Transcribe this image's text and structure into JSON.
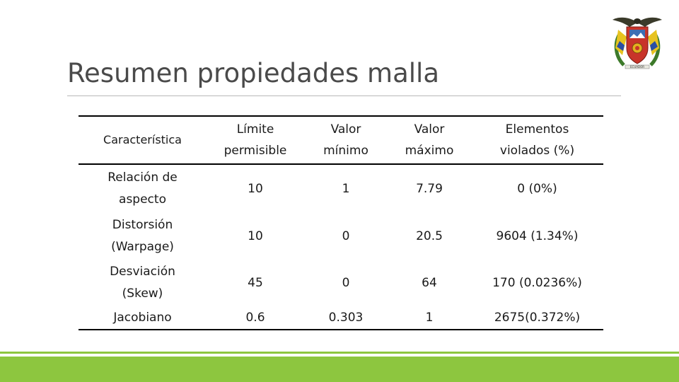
{
  "slide": {
    "title": "Resumen propiedades malla",
    "colors": {
      "bar": "#8dc63f",
      "rule": "#b8b8b8",
      "title": "#4a4a4a"
    },
    "logo": {
      "icon": "university-crest-icon",
      "ribbon_text": "ECUADOR"
    }
  },
  "table": {
    "headers": [
      "Característica",
      "Límite\npermisible",
      "Valor\nmínimo",
      "Valor\nmáximo",
      "Elementos\nviolados (%)"
    ],
    "rows": [
      [
        "Relación de\naspecto",
        "10",
        "1",
        "7.79",
        "0 (0%)"
      ],
      [
        "Distorsión\n(Warpage)",
        "10",
        "0",
        "20.5",
        "9604 (1.34%)"
      ],
      [
        "Desviación\n(Skew)",
        "45",
        "0",
        "64",
        "170 (0.0236%)"
      ],
      [
        "Jacobiano",
        "0.6",
        "0.303",
        "1",
        "2675(0.372%)"
      ]
    ]
  }
}
